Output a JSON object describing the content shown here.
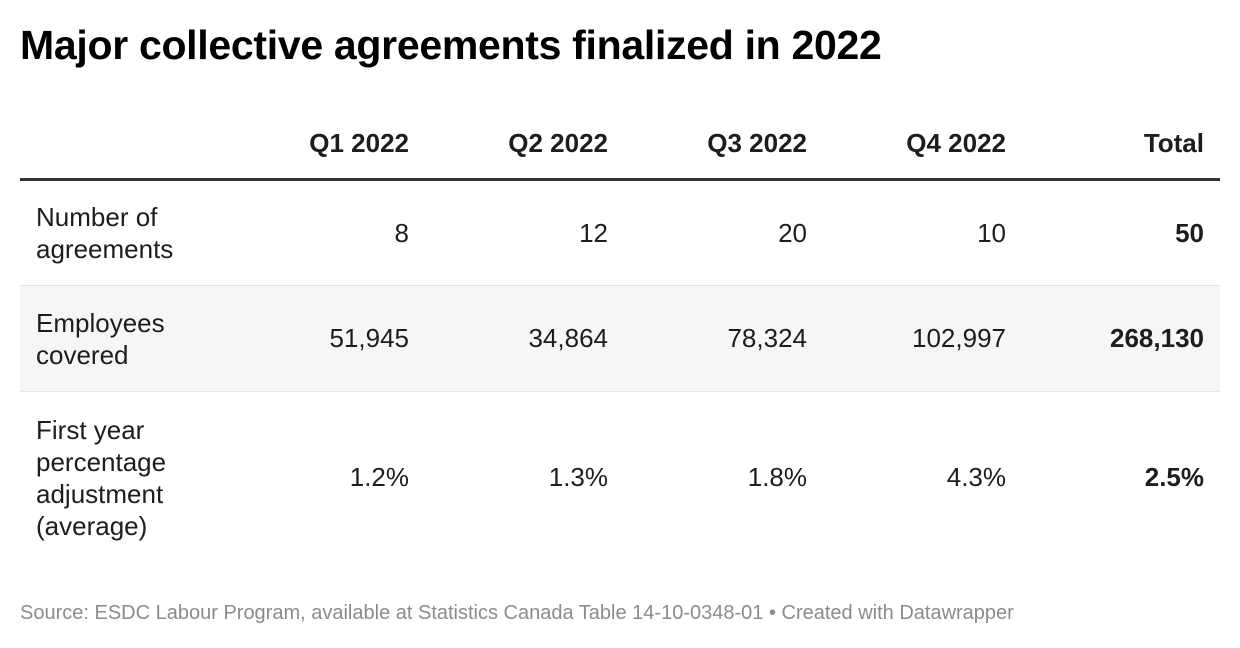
{
  "title": "Major collective agreements finalized in 2022",
  "chart_data": {
    "type": "table",
    "title": "Major collective agreements finalized in 2022",
    "columns": [
      "",
      "Q1 2022",
      "Q2 2022",
      "Q3 2022",
      "Q4 2022",
      "Total"
    ],
    "rows": [
      {
        "label": "Number of agreements",
        "values": [
          "8",
          "12",
          "20",
          "10"
        ],
        "total": "50"
      },
      {
        "label": "Employees covered",
        "values": [
          "51,945",
          "34,864",
          "78,324",
          "102,997"
        ],
        "total": "268,130"
      },
      {
        "label": "First year percentage adjustment (average)",
        "values": [
          "1.2%",
          "1.3%",
          "1.8%",
          "4.3%"
        ],
        "total": "2.5%"
      }
    ]
  },
  "footer": {
    "source": "Source: ESDC Labour Program, available at Statistics Canada Table 14-10-0348-01 • Created with Datawrapper"
  }
}
